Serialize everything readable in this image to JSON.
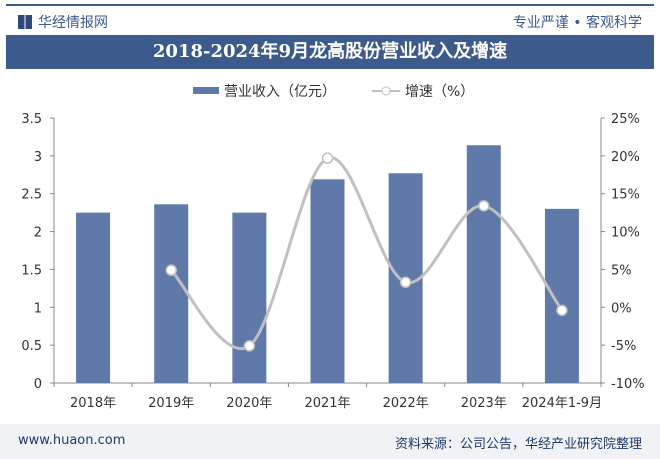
{
  "header": {
    "brand": "华经情报网",
    "slogan": "专业严谨 • 客观科学",
    "title": "2018-2024年9月龙高股份营业收入及增速"
  },
  "footer": {
    "site": "www.huaon.com",
    "source": "资料来源：公司公告，华经产业研究院整理"
  },
  "colors": {
    "bar": "#5f7aa8",
    "line": "#c0c0c0",
    "title_bg": "#3d5a8c"
  },
  "chart_data": {
    "type": "bar+line",
    "categories": [
      "2018年",
      "2019年",
      "2020年",
      "2021年",
      "2022年",
      "2023年",
      "2024年1-9月"
    ],
    "series": [
      {
        "name": "营业收入（亿元）",
        "type": "bar",
        "axis": "left",
        "values": [
          2.25,
          2.36,
          2.25,
          2.69,
          2.77,
          3.14,
          2.3
        ]
      },
      {
        "name": "增速（%）",
        "type": "line",
        "axis": "right",
        "values": [
          null,
          4.9,
          -5.1,
          19.7,
          3.3,
          13.4,
          -0.4
        ]
      }
    ],
    "left_axis": {
      "ylim": [
        0,
        3.5
      ],
      "ticks": [
        "0",
        "0.5",
        "1",
        "1.5",
        "2",
        "2.5",
        "3",
        "3.5"
      ]
    },
    "right_axis": {
      "ylim": [
        -10,
        25
      ],
      "ticks": [
        "-10%",
        "-5%",
        "0%",
        "5%",
        "10%",
        "15%",
        "20%",
        "25%"
      ]
    },
    "legend": "top-center",
    "grid": false
  }
}
